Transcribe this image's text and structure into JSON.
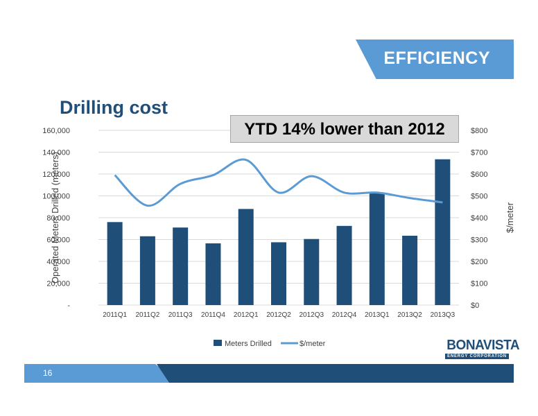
{
  "banner": {
    "label": "EFFICIENCY"
  },
  "page": {
    "title": "Drilling cost",
    "number": "16"
  },
  "callout": {
    "text": "YTD 14% lower than 2012"
  },
  "logo": {
    "main": "BONAVISTA",
    "sub": "ENERGY CORPORATION"
  },
  "colors": {
    "bar": "#1f4e79",
    "line": "#5b9bd5",
    "accent": "#5b9bd5",
    "dark": "#1f4e79"
  },
  "chart_data": {
    "type": "bar",
    "categories": [
      "2011Q1",
      "2011Q2",
      "2011Q3",
      "2011Q4",
      "2012Q1",
      "2012Q2",
      "2012Q3",
      "2012Q4",
      "2013Q1",
      "2013Q2",
      "2013Q3"
    ],
    "series": [
      {
        "name": "Meters Drilled",
        "type": "bar",
        "axis": "left",
        "values": [
          76000,
          63000,
          71000,
          56500,
          88000,
          57500,
          60500,
          72500,
          103000,
          63500,
          133500
        ]
      },
      {
        "name": "$/meter",
        "type": "line",
        "axis": "right",
        "values": [
          595,
          455,
          555,
          595,
          665,
          515,
          590,
          515,
          515,
          490,
          470
        ]
      }
    ],
    "ylabel": "Operated Meters Drilled (meters)",
    "y2label": "$/meter",
    "ylim": [
      0,
      160000
    ],
    "y2lim": [
      0,
      800
    ],
    "yticks": [
      "-",
      "20,000",
      "40,000",
      "60,000",
      "80,000",
      "100,000",
      "120,000",
      "140,000",
      "160,000"
    ],
    "y2ticks": [
      "$0",
      "$100",
      "$200",
      "$300",
      "$400",
      "$500",
      "$600",
      "$700",
      "$800"
    ],
    "grid": true,
    "legend": "bottom"
  }
}
